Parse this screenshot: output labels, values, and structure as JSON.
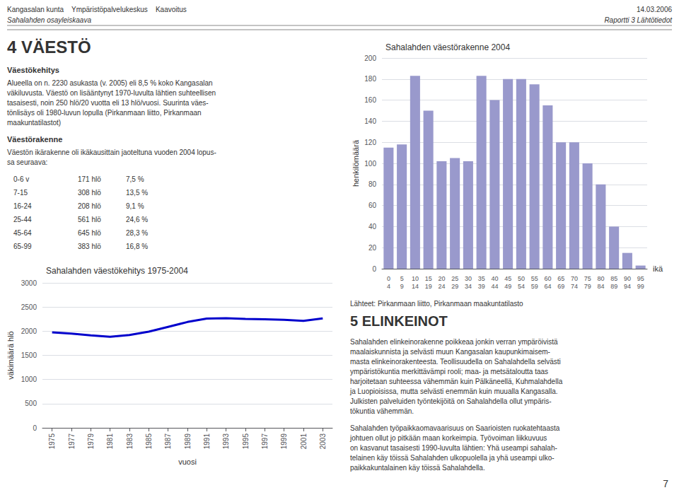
{
  "chart_data": [
    {
      "type": "bar",
      "title": "Sahalahden väestörakenne 2004",
      "xlabel": "ikä",
      "ylabel": "henkilömäärä",
      "categories": [
        "0\n4",
        "5\n9",
        "10\n14",
        "15\n19",
        "20\n24",
        "25\n29",
        "30\n34",
        "35\n39",
        "40\n44",
        "45\n49",
        "50\n54",
        "55\n59",
        "60\n64",
        "65\n69",
        "70\n74",
        "75\n79",
        "80\n84",
        "85\n89",
        "90\n94",
        "95\n99"
      ],
      "values": [
        115,
        118,
        183,
        150,
        102,
        105,
        102,
        183,
        160,
        180,
        180,
        175,
        155,
        120,
        120,
        100,
        80,
        40,
        15,
        3
      ],
      "color": "#9999cc",
      "ylim": [
        0,
        200
      ],
      "yticks": [
        0,
        20,
        40,
        60,
        80,
        100,
        120,
        140,
        160,
        180,
        200
      ],
      "grid": true
    },
    {
      "type": "line",
      "title": "Sahalahden väestökehitys 1975-2004",
      "xlabel": "vuosi",
      "ylabel": "väkimäärä hlö",
      "x": [
        1975,
        1977,
        1979,
        1981,
        1983,
        1985,
        1987,
        1989,
        1991,
        1993,
        1995,
        1997,
        1999,
        2001,
        2003
      ],
      "values": [
        1975,
        1950,
        1915,
        1885,
        1920,
        1990,
        2090,
        2190,
        2260,
        2270,
        2255,
        2245,
        2235,
        2215,
        2265
      ],
      "color": "#0000cc",
      "xlim": [
        1974,
        2004
      ],
      "xticks": [
        1975,
        1977,
        1979,
        1981,
        1983,
        1985,
        1987,
        1989,
        1991,
        1993,
        1995,
        1997,
        1999,
        2001,
        2003
      ],
      "ylim": [
        0,
        3000
      ],
      "yticks": [
        0,
        500,
        1000,
        1500,
        2000,
        2500,
        3000
      ],
      "grid": true
    }
  ],
  "annotations": [
    "Kangasalan kunta    Ympäristöpalvelukeskus    Kaavoitus",
    "Sahalahden osayleiskaava",
    "14.03.2006",
    "Raportti 3 Lähtötiedot",
    "4 VÄESTÖ",
    "Väestökehitys",
    "Alueella on n. 2230 asukasta (v. 2005) eli 8,5 % koko Kangasalan\nväkiluvusta. Väestö on lisääntynyt 1970-luvulta lähtien suhteellisen\ntasaisesti, noin 250 hlö/20 vuotta eli 13 hlö/vuosi. Suurinta väes-\ntönlisäys oli 1980-luvun lopulla (Pirkanmaan liitto, Pirkanmaan\nmaakuntatilastot)",
    "Väestörakenne",
    "Väestön ikärakenne oli ikäkausittain jaoteltuna vuoden 2004 lopus-\nsa seuraava:",
    "0-6 v",
    "171 hlö",
    "7,5 %",
    "7-15",
    "308 hlö",
    "13,5 %",
    "16-24",
    "208 hlö",
    "9,1 %",
    "25-44",
    "561 hlö",
    "24,6 %",
    "45-64",
    "645 hlö",
    "28,3 %",
    "65-99",
    "383 hlö",
    "16,8 %",
    "Lähteet: Pirkanmaan liitto, Pirkanmaan maakuntatilasto",
    "5 ELINKEINOT",
    "Sahalahden elinkeinorakenne poikkeaa jonkin verran ympäröivistä\nmaalaiskunnista ja selvästi muun Kangasalan kaupunkimaisem-\nmasta elinkeinorakenteesta. Teollisuudella on Sahalahdella selvästi\nympäristökuntia merkittävämpi rooli; maa- ja metsätaloutta taas\nharjoitetaan suhteessa vähemmän kuin Pälkäneellä, Kuhmalahdella\nja Luopioisissa, mutta selvästi enemmän kuin muualla Kangasalla.\nJulkisten palveluiden työntekijöitä on Sahalahdella ollut ympäris-\ntökuntia vähemmän.",
    "Sahalahden työpaikkaomavaarisuus on Saarioisten ruokatehtaasta\njohtuen ollut jo pitkään maan korkeimpia. Työvoiman liikkuvuus\non kasvanut tasaisesti 1990-luvulta lähtien: Yhä useampi sahalah-\ntelainen käy töissä Sahalahden ulkopuolella ja yhä useampi ulko-\npaikkakuntalainen käy töissä Sahalahdella.",
    "7"
  ]
}
